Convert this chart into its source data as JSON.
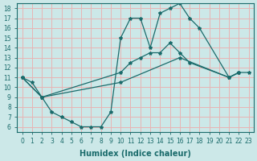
{
  "xlabel": "Humidex (Indice chaleur)",
  "xlim": [
    -0.5,
    23.5
  ],
  "ylim": [
    5.5,
    18.5
  ],
  "xticks": [
    0,
    1,
    2,
    3,
    4,
    5,
    6,
    7,
    8,
    9,
    10,
    11,
    12,
    13,
    14,
    15,
    16,
    17,
    18,
    19,
    20,
    21,
    22,
    23
  ],
  "yticks": [
    6,
    7,
    8,
    9,
    10,
    11,
    12,
    13,
    14,
    15,
    16,
    17,
    18
  ],
  "bg_color": "#cce8e8",
  "line_color": "#1a6b6b",
  "grid_color": "#e8b4b4",
  "tick_fontsize": 5.5,
  "axis_fontsize": 7,
  "curve1": {
    "x": [
      0,
      1,
      2,
      3,
      4,
      5,
      6,
      7,
      8,
      9,
      10,
      11,
      12,
      13,
      14,
      15,
      16,
      17,
      18,
      21,
      22
    ],
    "y": [
      11,
      10.5,
      9,
      7.5,
      7.0,
      6.5,
      6.0,
      6.0,
      6.0,
      7.5,
      15.0,
      17.0,
      17.0,
      14.0,
      17.5,
      18.0,
      18.5,
      17.0,
      16.0,
      11.0,
      11.5
    ]
  },
  "curve2": {
    "x": [
      0,
      2,
      10,
      11,
      12,
      13,
      14,
      15,
      16,
      17,
      21,
      22
    ],
    "y": [
      11,
      9.0,
      11.5,
      12.5,
      13.0,
      13.5,
      13.5,
      14.5,
      13.5,
      12.5,
      11.0,
      11.5
    ]
  },
  "curve3": {
    "x": [
      0,
      2,
      10,
      16,
      21,
      22,
      23
    ],
    "y": [
      11,
      9.0,
      10.5,
      13.0,
      11.0,
      11.5,
      11.5
    ]
  }
}
